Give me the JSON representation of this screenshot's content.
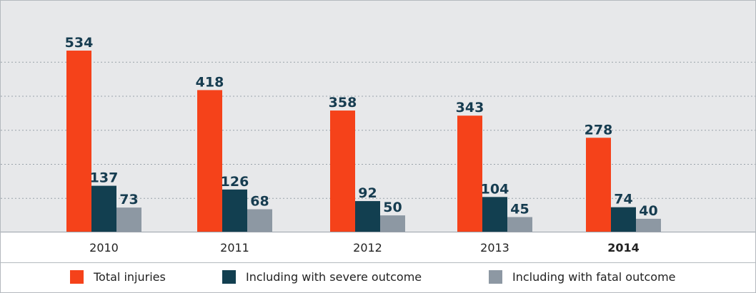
{
  "chart_data": {
    "type": "bar",
    "categories": [
      "2010",
      "2011",
      "2012",
      "2013",
      "2014"
    ],
    "highlight_category": "2014",
    "series": [
      {
        "name": "Total injuries",
        "color": "#f5421a",
        "values": [
          534,
          418,
          358,
          343,
          278
        ]
      },
      {
        "name": "Including with severe outcome",
        "color": "#123f50",
        "values": [
          137,
          126,
          92,
          104,
          74
        ]
      },
      {
        "name": "Including with fatal outcome",
        "color": "#8d98a3",
        "values": [
          73,
          68,
          50,
          45,
          40
        ]
      }
    ],
    "ylim": [
      0,
      600
    ],
    "grid": true,
    "grid_style": "dotted",
    "legend_position": "bottom",
    "data_labels": true
  }
}
